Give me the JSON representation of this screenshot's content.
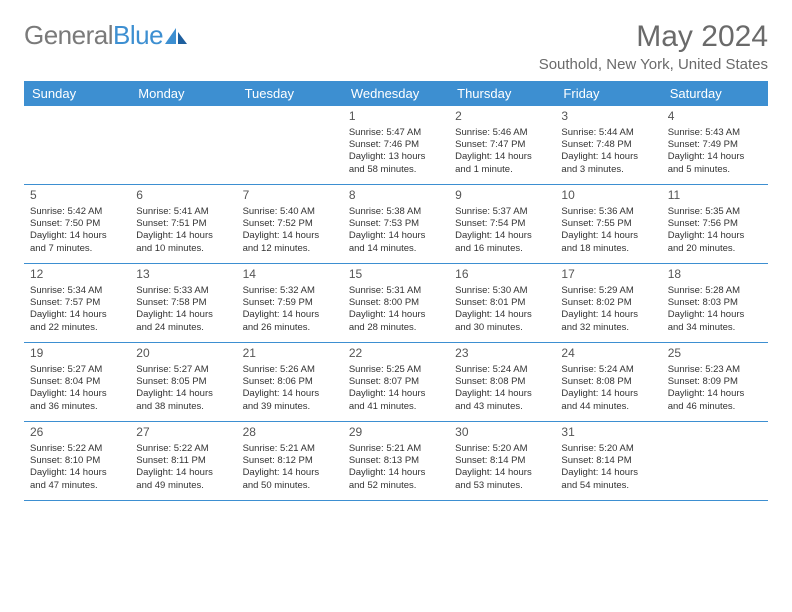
{
  "logo": {
    "text1": "General",
    "text2": "Blue"
  },
  "title": "May 2024",
  "subtitle": "Southold, New York, United States",
  "colors": {
    "header_bg": "#3d8fd1",
    "header_text": "#ffffff",
    "logo_gray": "#7a7a7a",
    "logo_blue": "#3d8fd1",
    "title_color": "#6a6a6a",
    "border": "#3d8fd1",
    "body_text": "#333333"
  },
  "day_names": [
    "Sunday",
    "Monday",
    "Tuesday",
    "Wednesday",
    "Thursday",
    "Friday",
    "Saturday"
  ],
  "weeks": [
    [
      null,
      null,
      null,
      {
        "day": "1",
        "sunrise": "5:47 AM",
        "sunset": "7:46 PM",
        "daylight": "13 hours and 58 minutes."
      },
      {
        "day": "2",
        "sunrise": "5:46 AM",
        "sunset": "7:47 PM",
        "daylight": "14 hours and 1 minute."
      },
      {
        "day": "3",
        "sunrise": "5:44 AM",
        "sunset": "7:48 PM",
        "daylight": "14 hours and 3 minutes."
      },
      {
        "day": "4",
        "sunrise": "5:43 AM",
        "sunset": "7:49 PM",
        "daylight": "14 hours and 5 minutes."
      }
    ],
    [
      {
        "day": "5",
        "sunrise": "5:42 AM",
        "sunset": "7:50 PM",
        "daylight": "14 hours and 7 minutes."
      },
      {
        "day": "6",
        "sunrise": "5:41 AM",
        "sunset": "7:51 PM",
        "daylight": "14 hours and 10 minutes."
      },
      {
        "day": "7",
        "sunrise": "5:40 AM",
        "sunset": "7:52 PM",
        "daylight": "14 hours and 12 minutes."
      },
      {
        "day": "8",
        "sunrise": "5:38 AM",
        "sunset": "7:53 PM",
        "daylight": "14 hours and 14 minutes."
      },
      {
        "day": "9",
        "sunrise": "5:37 AM",
        "sunset": "7:54 PM",
        "daylight": "14 hours and 16 minutes."
      },
      {
        "day": "10",
        "sunrise": "5:36 AM",
        "sunset": "7:55 PM",
        "daylight": "14 hours and 18 minutes."
      },
      {
        "day": "11",
        "sunrise": "5:35 AM",
        "sunset": "7:56 PM",
        "daylight": "14 hours and 20 minutes."
      }
    ],
    [
      {
        "day": "12",
        "sunrise": "5:34 AM",
        "sunset": "7:57 PM",
        "daylight": "14 hours and 22 minutes."
      },
      {
        "day": "13",
        "sunrise": "5:33 AM",
        "sunset": "7:58 PM",
        "daylight": "14 hours and 24 minutes."
      },
      {
        "day": "14",
        "sunrise": "5:32 AM",
        "sunset": "7:59 PM",
        "daylight": "14 hours and 26 minutes."
      },
      {
        "day": "15",
        "sunrise": "5:31 AM",
        "sunset": "8:00 PM",
        "daylight": "14 hours and 28 minutes."
      },
      {
        "day": "16",
        "sunrise": "5:30 AM",
        "sunset": "8:01 PM",
        "daylight": "14 hours and 30 minutes."
      },
      {
        "day": "17",
        "sunrise": "5:29 AM",
        "sunset": "8:02 PM",
        "daylight": "14 hours and 32 minutes."
      },
      {
        "day": "18",
        "sunrise": "5:28 AM",
        "sunset": "8:03 PM",
        "daylight": "14 hours and 34 minutes."
      }
    ],
    [
      {
        "day": "19",
        "sunrise": "5:27 AM",
        "sunset": "8:04 PM",
        "daylight": "14 hours and 36 minutes."
      },
      {
        "day": "20",
        "sunrise": "5:27 AM",
        "sunset": "8:05 PM",
        "daylight": "14 hours and 38 minutes."
      },
      {
        "day": "21",
        "sunrise": "5:26 AM",
        "sunset": "8:06 PM",
        "daylight": "14 hours and 39 minutes."
      },
      {
        "day": "22",
        "sunrise": "5:25 AM",
        "sunset": "8:07 PM",
        "daylight": "14 hours and 41 minutes."
      },
      {
        "day": "23",
        "sunrise": "5:24 AM",
        "sunset": "8:08 PM",
        "daylight": "14 hours and 43 minutes."
      },
      {
        "day": "24",
        "sunrise": "5:24 AM",
        "sunset": "8:08 PM",
        "daylight": "14 hours and 44 minutes."
      },
      {
        "day": "25",
        "sunrise": "5:23 AM",
        "sunset": "8:09 PM",
        "daylight": "14 hours and 46 minutes."
      }
    ],
    [
      {
        "day": "26",
        "sunrise": "5:22 AM",
        "sunset": "8:10 PM",
        "daylight": "14 hours and 47 minutes."
      },
      {
        "day": "27",
        "sunrise": "5:22 AM",
        "sunset": "8:11 PM",
        "daylight": "14 hours and 49 minutes."
      },
      {
        "day": "28",
        "sunrise": "5:21 AM",
        "sunset": "8:12 PM",
        "daylight": "14 hours and 50 minutes."
      },
      {
        "day": "29",
        "sunrise": "5:21 AM",
        "sunset": "8:13 PM",
        "daylight": "14 hours and 52 minutes."
      },
      {
        "day": "30",
        "sunrise": "5:20 AM",
        "sunset": "8:14 PM",
        "daylight": "14 hours and 53 minutes."
      },
      {
        "day": "31",
        "sunrise": "5:20 AM",
        "sunset": "8:14 PM",
        "daylight": "14 hours and 54 minutes."
      },
      null
    ]
  ],
  "labels": {
    "sunrise": "Sunrise: ",
    "sunset": "Sunset: ",
    "daylight": "Daylight: "
  }
}
